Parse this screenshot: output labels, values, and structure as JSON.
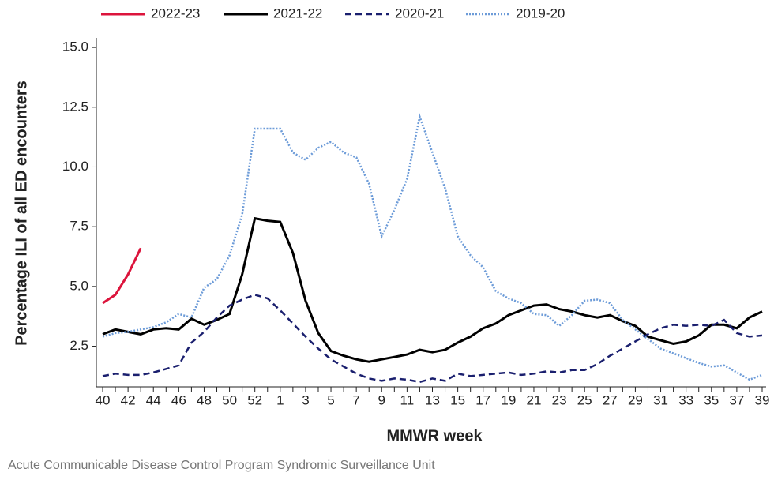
{
  "chart_data": {
    "type": "line",
    "xlabel": "MMWR week",
    "ylabel": "Percentage ILI of all ED encounters",
    "source": "Acute Communicable Disease Control Program Syndromic Surveillance Unit",
    "categories": [
      "40",
      null,
      "42",
      null,
      "44",
      null,
      "46",
      null,
      "48",
      null,
      "50",
      null,
      "52",
      null,
      "1",
      null,
      "3",
      null,
      "5",
      null,
      "7",
      null,
      "9",
      null,
      "11",
      null,
      "13",
      null,
      "15",
      null,
      "17",
      null,
      "19",
      null,
      "21",
      null,
      "23",
      null,
      "25",
      null,
      "27",
      null,
      "29",
      null,
      "31",
      null,
      "33",
      null,
      "35",
      null,
      "37",
      null,
      "39"
    ],
    "ylim": [
      0.8,
      15.4
    ],
    "yticks": [
      {
        "value": 2.5,
        "label": "2.5"
      },
      {
        "value": 5,
        "label": "5.0"
      },
      {
        "value": 7.5,
        "label": "7.5"
      },
      {
        "value": 10,
        "label": "10.0"
      },
      {
        "value": 12.5,
        "label": "12.5"
      },
      {
        "value": 15,
        "label": "15.0"
      }
    ],
    "series": [
      {
        "name": "2022-23",
        "color": "#dc143c",
        "dash": "solid",
        "values": [
          4.3,
          4.65,
          5.5,
          6.6,
          null,
          null,
          null,
          null,
          null,
          null,
          null,
          null,
          null,
          null,
          null,
          null,
          null,
          null,
          null,
          null,
          null,
          null,
          null,
          null,
          null,
          null,
          null,
          null,
          null,
          null,
          null,
          null,
          null,
          null,
          null,
          null,
          null,
          null,
          null,
          null,
          null,
          null,
          null,
          null,
          null,
          null,
          null,
          null,
          null,
          null,
          null,
          null,
          null
        ]
      },
      {
        "name": "2021-22",
        "color": "#000000",
        "dash": "solid",
        "values": [
          3.0,
          3.2,
          3.1,
          3.0,
          3.2,
          3.25,
          3.2,
          3.65,
          3.4,
          3.6,
          3.85,
          5.5,
          7.85,
          7.75,
          7.7,
          6.4,
          4.4,
          3.05,
          2.3,
          2.1,
          1.95,
          1.85,
          1.95,
          2.05,
          2.15,
          2.35,
          2.25,
          2.35,
          2.65,
          2.9,
          3.25,
          3.45,
          3.8,
          4.0,
          4.2,
          4.25,
          4.05,
          3.95,
          3.8,
          3.7,
          3.8,
          3.55,
          3.35,
          2.9,
          2.75,
          2.6,
          2.7,
          2.95,
          3.4,
          3.4,
          3.25,
          3.7,
          3.95
        ]
      },
      {
        "name": "2020-21",
        "color": "#1a1f6e",
        "dash": "dashed",
        "values": [
          1.25,
          1.35,
          1.3,
          1.3,
          1.4,
          1.55,
          1.7,
          2.65,
          3.1,
          3.7,
          4.2,
          4.45,
          4.65,
          4.5,
          4.0,
          3.45,
          2.9,
          2.4,
          1.95,
          1.65,
          1.35,
          1.15,
          1.05,
          1.15,
          1.1,
          1.0,
          1.15,
          1.05,
          1.35,
          1.25,
          1.3,
          1.35,
          1.4,
          1.3,
          1.35,
          1.45,
          1.4,
          1.5,
          1.5,
          1.75,
          2.1,
          2.4,
          2.7,
          3.0,
          3.25,
          3.4,
          3.35,
          3.4,
          3.35,
          3.6,
          3.05,
          2.9,
          2.95
        ]
      },
      {
        "name": "2019-20",
        "color": "#6c9bd8",
        "dash": "dotted",
        "values": [
          2.9,
          3.05,
          3.1,
          3.2,
          3.3,
          3.5,
          3.85,
          3.7,
          4.95,
          5.3,
          6.3,
          8.0,
          11.6,
          11.6,
          11.6,
          10.6,
          10.3,
          10.8,
          11.05,
          10.6,
          10.4,
          9.3,
          7.1,
          8.2,
          9.5,
          12.1,
          10.6,
          9.1,
          7.1,
          6.3,
          5.8,
          4.8,
          4.5,
          4.3,
          3.85,
          3.8,
          3.35,
          3.8,
          4.4,
          4.45,
          4.3,
          3.6,
          3.2,
          2.8,
          2.4,
          2.2,
          2.0,
          1.8,
          1.65,
          1.7,
          1.4,
          1.1,
          1.3
        ]
      }
    ]
  }
}
